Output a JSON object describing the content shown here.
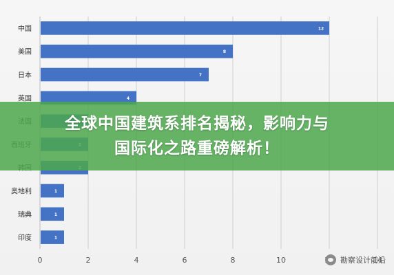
{
  "banner": {
    "line1": "全球中国建筑系排名揭秘，影响力与",
    "line2": "国际化之路重磅解析！"
  },
  "watermark": {
    "text": "勘察设计前沿",
    "icon": "wechat-icon"
  },
  "colors": {
    "bar": "#4472c4",
    "banner": "#4ea84e",
    "grid": "#cfcfcf"
  },
  "chart_data": {
    "type": "bar",
    "orientation": "horizontal",
    "title": "",
    "xlabel": "",
    "ylabel": "",
    "categories": [
      "中国",
      "美国",
      "日本",
      "英国",
      "法国",
      "西班牙",
      "韩国",
      "奥地利",
      "瑞典",
      "印度"
    ],
    "values": [
      12,
      8,
      7,
      4,
      2,
      2,
      2,
      1,
      1,
      1
    ],
    "xlim": [
      0,
      14
    ],
    "xticks": [
      0,
      2,
      4,
      6,
      8,
      10,
      12,
      14
    ],
    "grid": true,
    "data_labels": true
  }
}
